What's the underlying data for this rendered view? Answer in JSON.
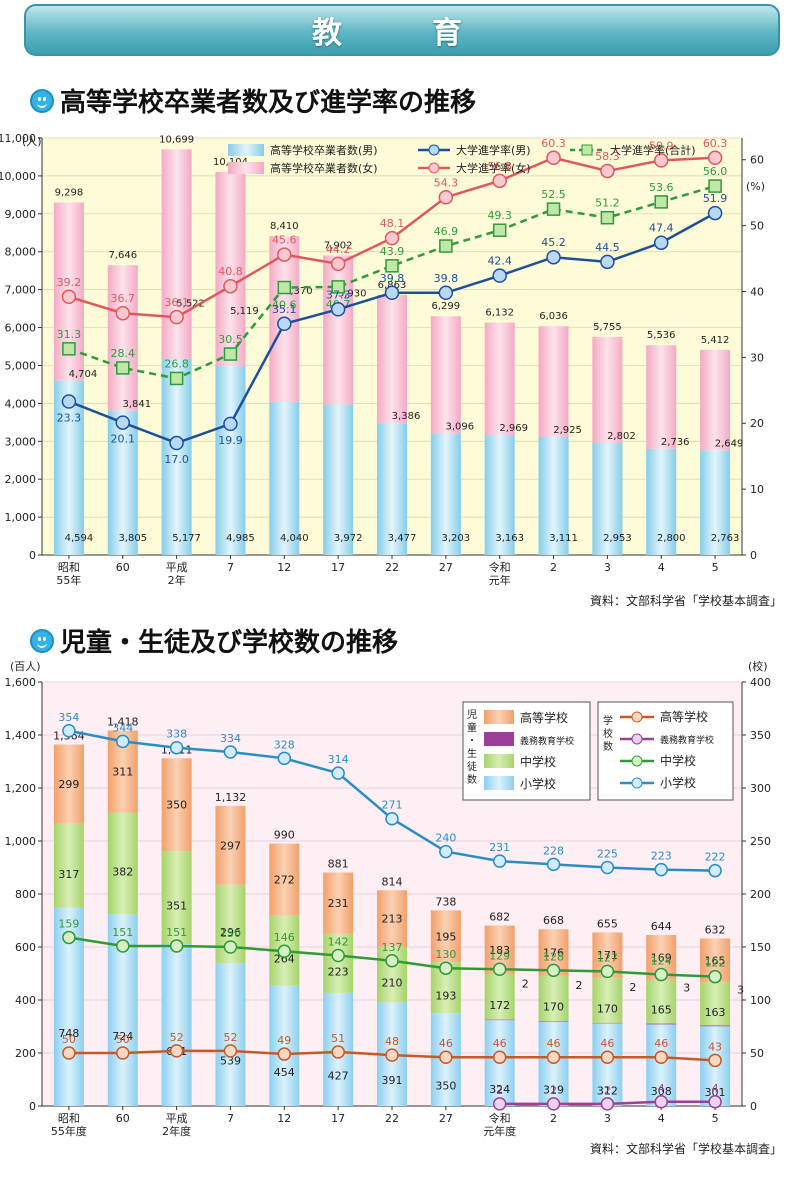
{
  "banner": {
    "title": "教　育"
  },
  "section1": {
    "title": "高等学校卒業者数及び進学率の推移",
    "source": "資料：文部科学省「学校基本調査」"
  },
  "section2": {
    "title": "児童・生徒及び学校数の推移",
    "source": "資料：文部科学省「学校基本調査」"
  },
  "colors": {
    "male_bar": "#8fd3ee",
    "female_bar": "#f7b8cf",
    "univ_male": "#1d4f9c",
    "univ_female": "#e0585e",
    "univ_total": "#2e9b3a",
    "high": "#f4a46e",
    "compulsory": "#9b3f9a",
    "middle": "#a9d46c",
    "elem": "#8cd0f0",
    "line_high": "#c8582a",
    "line_mid": "#2f9b34",
    "line_elem": "#2a8ec5"
  },
  "chart_data": [
    {
      "type": "bar",
      "unit_left": "(人)",
      "unit_right": "(%)",
      "categories": [
        "昭和\n55年",
        "60",
        "平成\n2年",
        "7",
        "12",
        "17",
        "22",
        "27",
        "令和\n元年",
        "2",
        "3",
        "4",
        "5"
      ],
      "ylim": [
        0,
        11000
      ],
      "y2lim": [
        0,
        63.3
      ],
      "yticks": [
        "0",
        "1,000",
        "2,000",
        "3,000",
        "4,000",
        "5,000",
        "6,000",
        "7,000",
        "8,000",
        "9,000",
        "10,000",
        "11,000"
      ],
      "y2ticks": [
        "0",
        "10",
        "20",
        "30",
        "40",
        "50",
        "60"
      ],
      "legend": [
        "高等学校卒業者数(男)",
        "高等学校卒業者数(女)",
        "大学進学率(男)",
        "大学進学率(女)",
        "大学進学率(合計)"
      ],
      "male": [
        4594,
        3805,
        5177,
        4985,
        4040,
        3972,
        3477,
        3203,
        3163,
        3111,
        2953,
        2800,
        2763
      ],
      "female": [
        4704,
        3841,
        5522,
        5119,
        4370,
        3930,
        3386,
        3096,
        2969,
        2925,
        2802,
        2736,
        2649
      ],
      "total": [
        9298,
        7646,
        10699,
        10104,
        8410,
        7902,
        6863,
        6299,
        6132,
        6036,
        5755,
        5536,
        5412
      ],
      "male_labels": [
        "4,594",
        "3,805",
        "5,177",
        "4,985",
        "4,040",
        "3,972",
        "3,477",
        "3,203",
        "3,163",
        "3,111",
        "2,953",
        "2,800",
        "2,763"
      ],
      "female_labels": [
        "4,704",
        "3,841",
        "5,522",
        "5,119",
        "4,370",
        "3,930",
        "3,386",
        "3,096",
        "2,969",
        "2,925",
        "2,802",
        "2,736",
        "2,649"
      ],
      "total_labels": [
        "9,298",
        "7,646",
        "10,699",
        "10,104",
        "8,410",
        "7,902",
        "6,863",
        "6,299",
        "6,132",
        "6,036",
        "5,755",
        "5,536",
        "5,412"
      ],
      "univ_male": [
        23.3,
        20.1,
        17.0,
        19.9,
        35.1,
        37.3,
        39.8,
        39.8,
        42.4,
        45.2,
        44.5,
        47.4,
        51.9
      ],
      "univ_female": [
        39.2,
        36.7,
        36.1,
        40.8,
        45.6,
        44.2,
        48.1,
        54.3,
        56.8,
        60.3,
        58.3,
        59.9,
        60.3
      ],
      "univ_total": [
        31.3,
        28.4,
        26.8,
        30.5,
        40.6,
        40.7,
        43.9,
        46.9,
        49.3,
        52.5,
        51.2,
        53.6,
        56.0
      ],
      "univ_male_labels": [
        "23.3",
        "20.1",
        "17.0",
        "19.9",
        "35.1",
        "37.3",
        "39.8",
        "39.8",
        "42.4",
        "45.2",
        "44.5",
        "47.4",
        "51.9"
      ],
      "univ_female_labels": [
        "39.2",
        "36.7",
        "36.1",
        "40.8",
        "45.6",
        "44.2",
        "48.1",
        "54.3",
        "56.8",
        "60.3",
        "58.3",
        "59.9",
        "60.3"
      ],
      "univ_total_labels": [
        "31.3",
        "28.4",
        "26.8",
        "30.5",
        "40.6",
        "40.7",
        "43.9",
        "46.9",
        "49.3",
        "52.5",
        "51.2",
        "53.6",
        "56.0"
      ]
    },
    {
      "type": "bar",
      "unit_left": "(百人)",
      "unit_right": "(校)",
      "categories": [
        "昭和\n55年度",
        "60",
        "平成\n2年度",
        "7",
        "12",
        "17",
        "22",
        "27",
        "令和\n元年度",
        "2",
        "3",
        "4",
        "5"
      ],
      "ylim": [
        0,
        1600
      ],
      "y2lim": [
        0,
        400
      ],
      "yticks": [
        "0",
        "200",
        "400",
        "600",
        "800",
        "1,000",
        "1,200",
        "1,400",
        "1,600"
      ],
      "y2ticks": [
        "0",
        "50",
        "100",
        "150",
        "200",
        "250",
        "300",
        "350",
        "400"
      ],
      "legend_students_label": "児童・生徒数",
      "legend_schools_label": "学校数",
      "legend_items": [
        "高等学校",
        "義務教育学校",
        "中学校",
        "小学校"
      ],
      "elem": [
        748,
        724,
        611,
        539,
        454,
        427,
        391,
        350,
        324,
        319,
        312,
        308,
        301
      ],
      "compulsory": [
        0,
        0,
        0,
        0,
        0,
        0,
        0,
        0,
        2,
        2,
        2,
        3,
        3
      ],
      "middle": [
        317,
        382,
        351,
        296,
        264,
        223,
        210,
        193,
        172,
        170,
        170,
        165,
        163
      ],
      "high": [
        299,
        311,
        350,
        297,
        272,
        231,
        213,
        195,
        183,
        176,
        171,
        169,
        165
      ],
      "total": [
        1364,
        1418,
        1311,
        1132,
        990,
        881,
        814,
        738,
        682,
        668,
        655,
        644,
        632
      ],
      "total_labels": [
        "1,364",
        "1,418",
        "1,311",
        "1,132",
        "990",
        "881",
        "814",
        "738",
        "682",
        "668",
        "655",
        "644",
        "632"
      ],
      "compulsory_labels": [
        "",
        "",
        "",
        "",
        "",
        "",
        "",
        "",
        "2",
        "2",
        "2",
        "3",
        "3"
      ],
      "schools_high": [
        50,
        50,
        52,
        52,
        49,
        51,
        48,
        46,
        46,
        46,
        46,
        46,
        43
      ],
      "schools_compulsory": [
        null,
        null,
        null,
        null,
        null,
        null,
        null,
        null,
        2,
        2,
        2,
        4,
        4
      ],
      "schools_middle": [
        159,
        151,
        151,
        150,
        146,
        142,
        137,
        130,
        129,
        128,
        127,
        124,
        122
      ],
      "schools_elem": [
        354,
        344,
        338,
        334,
        328,
        314,
        271,
        240,
        231,
        228,
        225,
        223,
        222
      ]
    }
  ]
}
